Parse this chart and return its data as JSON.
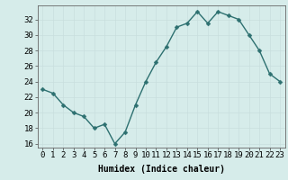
{
  "x": [
    0,
    1,
    2,
    3,
    4,
    5,
    6,
    7,
    8,
    9,
    10,
    11,
    12,
    13,
    14,
    15,
    16,
    17,
    18,
    19,
    20,
    21,
    22,
    23
  ],
  "y": [
    23,
    22.5,
    21,
    20,
    19.5,
    18,
    18.5,
    16,
    17.5,
    21,
    24,
    26.5,
    28.5,
    31,
    31.5,
    33,
    31.5,
    33,
    32.5,
    32,
    30,
    28,
    25,
    24
  ],
  "line_color": "#2d7070",
  "marker_color": "#2d7070",
  "bg_color": "#d6ecea",
  "grid_color": "#c8dede",
  "xlabel": "Humidex (Indice chaleur)",
  "ylim": [
    15.5,
    33.8
  ],
  "xlim": [
    -0.5,
    23.5
  ],
  "yticks": [
    16,
    18,
    20,
    22,
    24,
    26,
    28,
    30,
    32
  ],
  "xticks": [
    0,
    1,
    2,
    3,
    4,
    5,
    6,
    7,
    8,
    9,
    10,
    11,
    12,
    13,
    14,
    15,
    16,
    17,
    18,
    19,
    20,
    21,
    22,
    23
  ],
  "xlabel_fontsize": 7,
  "tick_fontsize": 6.5,
  "line_width": 1.0,
  "marker_size": 2.5
}
